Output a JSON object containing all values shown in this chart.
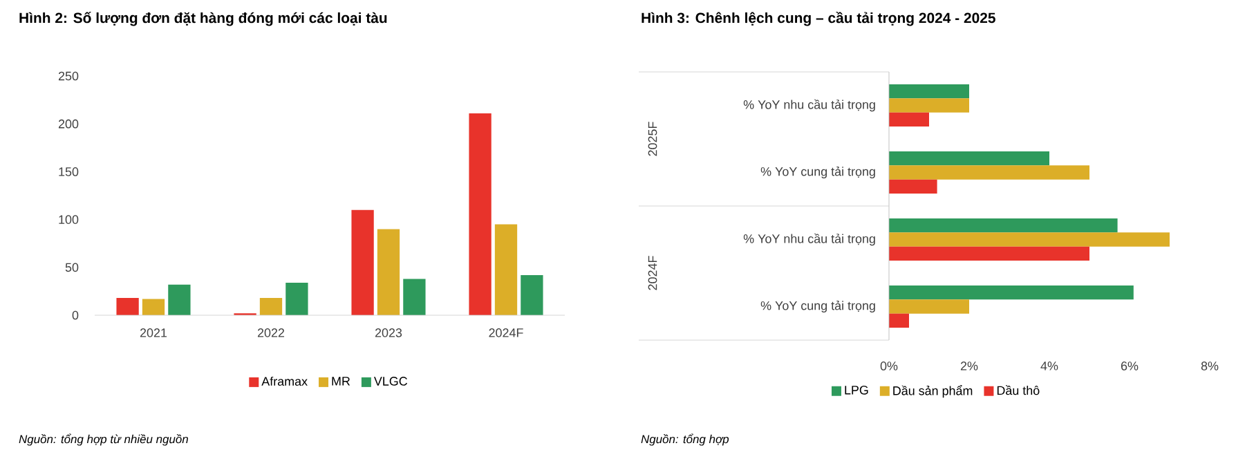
{
  "chart_data": [
    {
      "type": "bar",
      "title": "Hình 2: Số lượng đơn đặt hàng đóng mới các loại tàu",
      "categories": [
        "2021",
        "2022",
        "2023",
        "2024F"
      ],
      "series": [
        {
          "name": "Aframax",
          "color": "#e8332b",
          "values": [
            18,
            2,
            110,
            211
          ]
        },
        {
          "name": "MR",
          "color": "#dcae28",
          "values": [
            17,
            18,
            90,
            95
          ]
        },
        {
          "name": "VLGC",
          "color": "#2e9a5c",
          "values": [
            32,
            34,
            38,
            42
          ]
        }
      ],
      "ylim": [
        0,
        250
      ],
      "yticks": [
        0,
        50,
        100,
        150,
        200,
        250
      ],
      "legend": "bottom",
      "annotations": [
        "Nguồn: tổng hợp từ nhiều nguồn"
      ]
    },
    {
      "type": "bar",
      "orientation": "horizontal",
      "title": "Hình 3: Chênh lệch cung – cầu tải trọng 2024 - 2025",
      "categories": [
        "% YoY nhu cầu tải trọng",
        "% YoY cung tải trọng",
        "% YoY nhu cầu tải trọng",
        "% YoY cung tải trọng"
      ],
      "series": [
        {
          "name": "LPG",
          "color": "#2e9a5c",
          "values": [
            2.0,
            4.0,
            5.7,
            6.1
          ]
        },
        {
          "name": "Dầu sản phẩm",
          "color": "#dcae28",
          "values": [
            2.0,
            5.0,
            7.0,
            2.0
          ]
        },
        {
          "name": "Dầu thô",
          "color": "#e8332b",
          "values": [
            1.0,
            1.2,
            5.0,
            0.5
          ]
        }
      ],
      "xlim": [
        0,
        8
      ],
      "xticks": [
        {
          "value": 0,
          "label": "0%"
        },
        {
          "value": 2,
          "label": "2%"
        },
        {
          "value": 4,
          "label": "4%"
        },
        {
          "value": 6,
          "label": "6%"
        },
        {
          "value": 8,
          "label": "8%"
        }
      ],
      "legend": "bottom",
      "annotations": [
        "2025F",
        "2024F",
        "Nguồn: tổng hợp"
      ]
    }
  ]
}
